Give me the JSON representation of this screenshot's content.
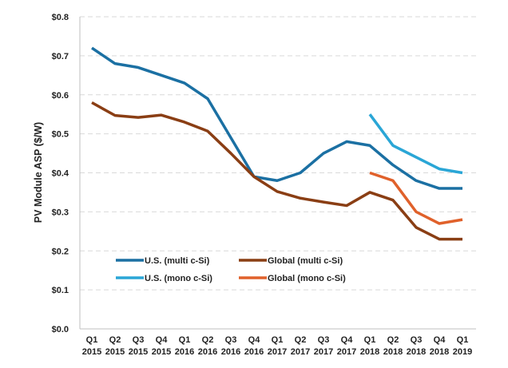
{
  "chart_data": {
    "type": "line",
    "title": "",
    "xlabel": "",
    "ylabel": "PV Module ASP ($/W)",
    "ylim": [
      0,
      0.8
    ],
    "yticks": [
      "$0.0",
      "$0.1",
      "$0.2",
      "$0.3",
      "$0.4",
      "$0.5",
      "$0.6",
      "$0.7",
      "$0.8"
    ],
    "grid": true,
    "legend_position": "bottom-left inside",
    "categories": [
      [
        "Q1",
        "2015"
      ],
      [
        "Q2",
        "2015"
      ],
      [
        "Q3",
        "2015"
      ],
      [
        "Q4",
        "2015"
      ],
      [
        "Q1",
        "2016"
      ],
      [
        "Q2",
        "2016"
      ],
      [
        "Q3",
        "2016"
      ],
      [
        "Q4",
        "2016"
      ],
      [
        "Q1",
        "2017"
      ],
      [
        "Q2",
        "2017"
      ],
      [
        "Q3",
        "2017"
      ],
      [
        "Q4",
        "2017"
      ],
      [
        "Q1",
        "2018"
      ],
      [
        "Q2",
        "2018"
      ],
      [
        "Q3",
        "2018"
      ],
      [
        "Q4",
        "2018"
      ],
      [
        "Q1",
        "2019"
      ]
    ],
    "series": [
      {
        "name": "U.S. (multi c-Si)",
        "color": "#1b70a3",
        "values": [
          0.72,
          0.68,
          0.67,
          0.65,
          0.63,
          0.59,
          0.49,
          0.39,
          0.38,
          0.4,
          0.45,
          0.48,
          0.47,
          0.42,
          0.38,
          0.36,
          0.36
        ]
      },
      {
        "name": "Global (multi c-Si)",
        "color": "#8a3e14",
        "values": [
          0.58,
          0.547,
          0.542,
          0.548,
          0.53,
          0.507,
          0.45,
          0.39,
          0.352,
          0.335,
          0.325,
          0.316,
          0.35,
          0.33,
          0.26,
          0.23,
          0.23
        ]
      },
      {
        "name": "U.S. (mono c-Si)",
        "color": "#2aa6d6",
        "values": [
          null,
          null,
          null,
          null,
          null,
          null,
          null,
          null,
          null,
          null,
          null,
          null,
          0.55,
          0.47,
          0.44,
          0.41,
          0.4
        ]
      },
      {
        "name": "Global (mono c-Si)",
        "color": "#e0612b",
        "values": [
          null,
          null,
          null,
          null,
          null,
          null,
          null,
          null,
          null,
          null,
          null,
          null,
          0.4,
          0.38,
          0.3,
          0.27,
          0.28
        ]
      }
    ]
  }
}
